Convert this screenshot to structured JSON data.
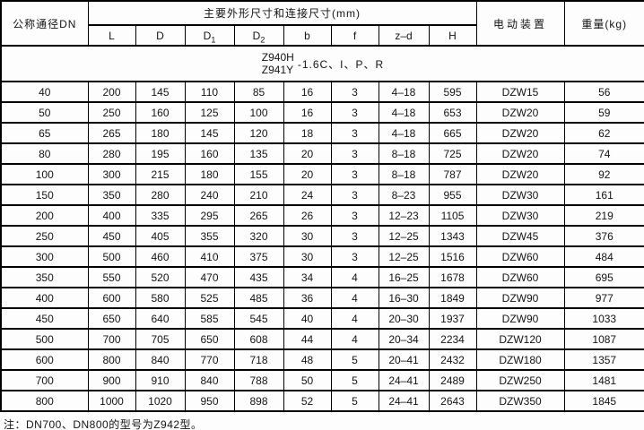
{
  "table": {
    "dn_label": "公称通径DN",
    "dims_group_label": "主要外形尺寸和连接尺寸(mm)",
    "actuator_label": "电动装置",
    "weight_label": "重量(kg)",
    "dim_columns": [
      {
        "base": "L",
        "sub": ""
      },
      {
        "base": "D",
        "sub": ""
      },
      {
        "base": "D",
        "sub": "1"
      },
      {
        "base": "D",
        "sub": "2"
      },
      {
        "base": "b",
        "sub": ""
      },
      {
        "base": "f",
        "sub": ""
      },
      {
        "base": "z–d",
        "sub": ""
      },
      {
        "base": "H",
        "sub": ""
      }
    ],
    "rows": [
      {
        "dn": "40",
        "l": "200",
        "d": "145",
        "d1": "110",
        "d2": "85",
        "b": "16",
        "f": "3",
        "zd": "4–18",
        "h": "595",
        "actuator": "DZW15",
        "weight": "56"
      },
      {
        "dn": "50",
        "l": "250",
        "d": "160",
        "d1": "125",
        "d2": "100",
        "b": "16",
        "f": "3",
        "zd": "4–18",
        "h": "653",
        "actuator": "DZW20",
        "weight": "59"
      },
      {
        "dn": "65",
        "l": "265",
        "d": "180",
        "d1": "145",
        "d2": "120",
        "b": "18",
        "f": "3",
        "zd": "4–18",
        "h": "665",
        "actuator": "DZW20",
        "weight": "62"
      },
      {
        "dn": "80",
        "l": "280",
        "d": "195",
        "d1": "160",
        "d2": "135",
        "b": "20",
        "f": "3",
        "zd": "8–18",
        "h": "725",
        "actuator": "DZW20",
        "weight": "74"
      },
      {
        "dn": "100",
        "l": "300",
        "d": "215",
        "d1": "180",
        "d2": "155",
        "b": "20",
        "f": "3",
        "zd": "8–18",
        "h": "787",
        "actuator": "DZW20",
        "weight": "92"
      },
      {
        "dn": "150",
        "l": "350",
        "d": "280",
        "d1": "240",
        "d2": "210",
        "b": "24",
        "f": "3",
        "zd": "8–23",
        "h": "955",
        "actuator": "DZW30",
        "weight": "161"
      },
      {
        "dn": "200",
        "l": "400",
        "d": "335",
        "d1": "295",
        "d2": "265",
        "b": "26",
        "f": "3",
        "zd": "12–23",
        "h": "1105",
        "actuator": "DZW30",
        "weight": "219"
      },
      {
        "dn": "250",
        "l": "450",
        "d": "405",
        "d1": "355",
        "d2": "320",
        "b": "30",
        "f": "3",
        "zd": "12–25",
        "h": "1343",
        "actuator": "DZW45",
        "weight": "376"
      },
      {
        "dn": "300",
        "l": "500",
        "d": "460",
        "d1": "410",
        "d2": "375",
        "b": "30",
        "f": "3",
        "zd": "12–25",
        "h": "1516",
        "actuator": "DZW60",
        "weight": "484"
      },
      {
        "dn": "350",
        "l": "550",
        "d": "520",
        "d1": "470",
        "d2": "435",
        "b": "34",
        "f": "4",
        "zd": "16–25",
        "h": "1678",
        "actuator": "DZW60",
        "weight": "695"
      },
      {
        "dn": "400",
        "l": "600",
        "d": "580",
        "d1": "525",
        "d2": "485",
        "b": "36",
        "f": "4",
        "zd": "16–30",
        "h": "1849",
        "actuator": "DZW90",
        "weight": "977"
      },
      {
        "dn": "450",
        "l": "650",
        "d": "640",
        "d1": "585",
        "d2": "545",
        "b": "40",
        "f": "4",
        "zd": "20–30",
        "h": "1937",
        "actuator": "DZW90",
        "weight": "1033"
      },
      {
        "dn": "500",
        "l": "700",
        "d": "705",
        "d1": "650",
        "d2": "608",
        "b": "44",
        "f": "4",
        "zd": "20–34",
        "h": "2234",
        "actuator": "DZW120",
        "weight": "1087"
      },
      {
        "dn": "600",
        "l": "800",
        "d": "840",
        "d1": "770",
        "d2": "718",
        "b": "48",
        "f": "5",
        "zd": "20–41",
        "h": "2432",
        "actuator": "DZW180",
        "weight": "1357"
      },
      {
        "dn": "700",
        "l": "900",
        "d": "910",
        "d1": "840",
        "d2": "788",
        "b": "50",
        "f": "5",
        "zd": "24–41",
        "h": "2489",
        "actuator": "DZW250",
        "weight": "1481"
      },
      {
        "dn": "800",
        "l": "1000",
        "d": "1020",
        "d1": "950",
        "d2": "898",
        "b": "52",
        "f": "5",
        "zd": "24–41",
        "h": "2643",
        "actuator": "DZW350",
        "weight": "1845"
      }
    ]
  },
  "model_row": {
    "code_top": "Z940H",
    "code_bottom": "Z941Y",
    "suffix": "-1.6C、I、P、R"
  },
  "note": "注：DN700、DN800的型号为Z942型。",
  "colors": {
    "border": "#000000",
    "text": "#141414",
    "background": "#fdfdfd"
  }
}
